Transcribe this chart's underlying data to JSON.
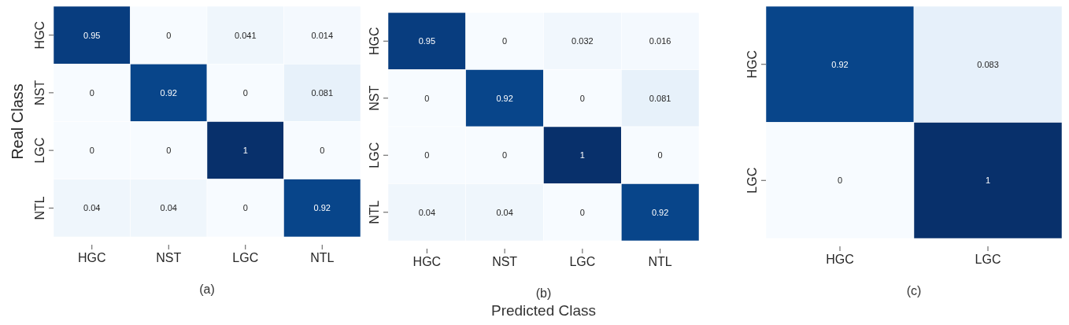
{
  "chart_data": [
    {
      "type": "heatmap",
      "data_labels": true,
      "ylabel": "Real Class",
      "annotations": [
        "(a)"
      ],
      "categories": [
        "HGC",
        "NST",
        "LGC",
        "NTL"
      ],
      "y_categories": [
        "HGC",
        "NST",
        "LGC",
        "NTL"
      ],
      "cells": [
        [
          0.95,
          0,
          0.041,
          0.014
        ],
        [
          0,
          0.92,
          0,
          0.081
        ],
        [
          0,
          0,
          1,
          0
        ],
        [
          0.04,
          0.04,
          0,
          0.92
        ]
      ]
    },
    {
      "type": "heatmap",
      "data_labels": true,
      "xlabel": "Predicted Class",
      "annotations": [
        "(b)"
      ],
      "categories": [
        "HGC",
        "NST",
        "LGC",
        "NTL"
      ],
      "y_categories": [
        "HGC",
        "NST",
        "LGC",
        "NTL"
      ],
      "cells": [
        [
          0.95,
          0,
          0.032,
          0.016
        ],
        [
          0,
          0.92,
          0,
          0.081
        ],
        [
          0,
          0,
          1,
          0
        ],
        [
          0.04,
          0.04,
          0,
          0.92
        ]
      ]
    },
    {
      "type": "heatmap",
      "data_labels": true,
      "annotations": [
        "(c)"
      ],
      "categories": [
        "HGC",
        "LGC"
      ],
      "y_categories": [
        "HGC",
        "LGC"
      ],
      "cells": [
        [
          0.92,
          0.083
        ],
        [
          0,
          1
        ]
      ]
    }
  ]
}
